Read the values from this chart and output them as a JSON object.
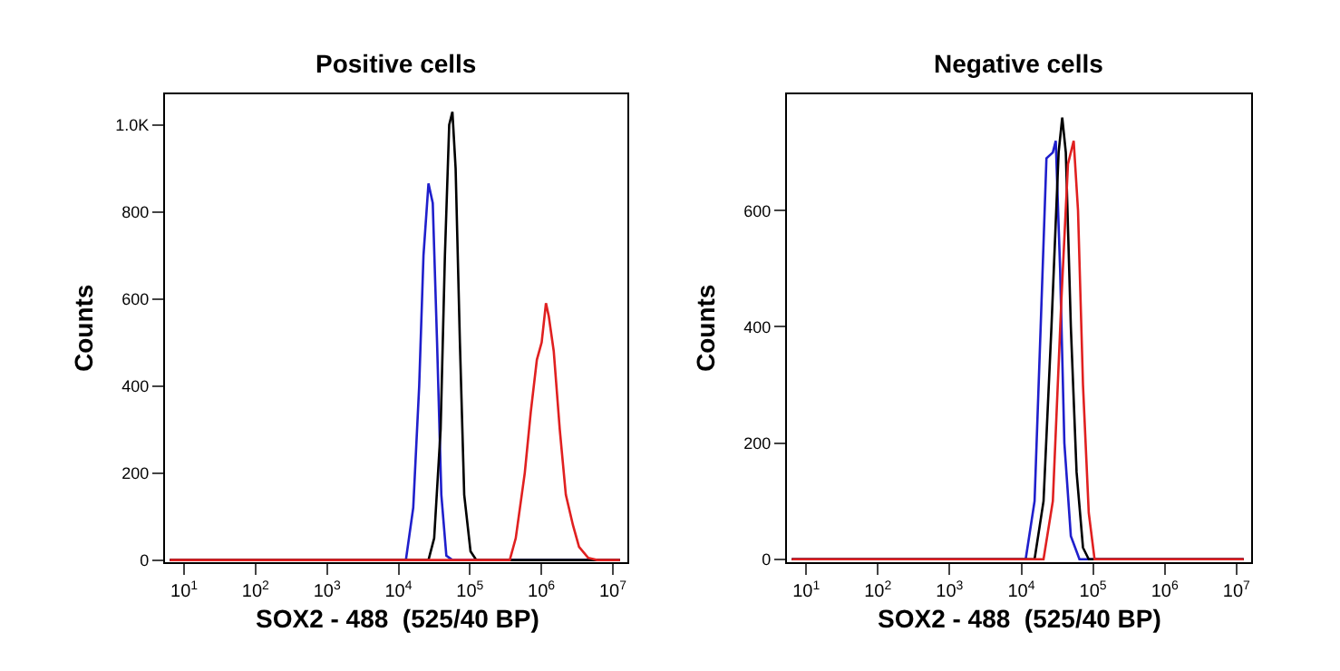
{
  "chart_data": [
    {
      "type": "line",
      "title": "Positive cells",
      "xlabel": "SOX2 - 488  (525/40 BP)",
      "ylabel": "Counts",
      "log": "x",
      "marker": "none",
      "line_style": "solid",
      "xlim": [
        5.4,
        16000000
      ],
      "ylim": [
        -5,
        1070
      ],
      "xticks": [
        {
          "value": 10,
          "label": "10$^{1}$"
        },
        {
          "value": 100,
          "label": "10$^{2}$"
        },
        {
          "value": 1000,
          "label": "10$^{3}$"
        },
        {
          "value": 10000,
          "label": "10$^{4}$"
        },
        {
          "value": 100000,
          "label": "10$^{5}$"
        },
        {
          "value": 1000000,
          "label": "10$^{6}$"
        },
        {
          "value": 10000000,
          "label": "10$^{7}$"
        }
      ],
      "yticks": [
        0,
        200,
        400,
        600,
        800,
        {
          "value": 1000,
          "label": "1.0K"
        }
      ],
      "series": [
        {
          "color": "#1f1fcc",
          "x": [
            6.3,
            12700,
            16100,
            19500,
            22400,
            26300,
            30200,
            34700,
            39800,
            46800,
            56900,
            12600000
          ],
          "values": [
            0,
            0,
            120,
            400,
            700,
            865,
            820,
            500,
            150,
            10,
            0,
            0
          ]
        },
        {
          "color": "#000000",
          "x": [
            6.3,
            26300,
            31600,
            38900,
            44700,
            51300,
            56900,
            63100,
            72400,
            83200,
            102000,
            123000,
            12600000
          ],
          "values": [
            0,
            0,
            50,
            300,
            700,
            1000,
            1030,
            900,
            500,
            150,
            20,
            0,
            0
          ]
        },
        {
          "color": "#e02020",
          "x": [
            6.3,
            361000,
            438000,
            586000,
            711000,
            865000,
            1010000,
            1160000,
            1270000,
            1490000,
            1810000,
            2200000,
            2770000,
            3370000,
            4510000,
            6030000,
            12600000
          ],
          "values": [
            0,
            0,
            50,
            200,
            340,
            460,
            500,
            590,
            560,
            480,
            300,
            150,
            80,
            30,
            5,
            0,
            0
          ]
        }
      ]
    },
    {
      "type": "line",
      "title": "Negative cells",
      "xlabel": "SOX2 - 488  (525/40 BP)",
      "ylabel": "Counts",
      "log": "x",
      "marker": "none",
      "line_style": "solid",
      "xlim": [
        5.4,
        16000000
      ],
      "ylim": [
        -5,
        800
      ],
      "xticks": [
        {
          "value": 10,
          "label": "10$^{1}$"
        },
        {
          "value": 100,
          "label": "10$^{2}$"
        },
        {
          "value": 1000,
          "label": "10$^{3}$"
        },
        {
          "value": 10000,
          "label": "10$^{4}$"
        },
        {
          "value": 100000,
          "label": "10$^{5}$"
        },
        {
          "value": 1000000,
          "label": "10$^{6}$"
        },
        {
          "value": 10000000,
          "label": "10$^{7}$"
        }
      ],
      "yticks": [
        0,
        200,
        400,
        600
      ],
      "series": [
        {
          "color": "#1f1fcc",
          "x": [
            6.3,
            11500,
            15300,
            18600,
            22400,
            27500,
            30200,
            34700,
            39800,
            49000,
            64600,
            12600000
          ],
          "values": [
            0,
            0,
            100,
            400,
            690,
            700,
            720,
            500,
            200,
            40,
            0,
            0
          ]
        },
        {
          "color": "#000000",
          "x": [
            6.3,
            15300,
            20400,
            26300,
            33100,
            37200,
            41700,
            49000,
            58900,
            72400,
            87100,
            12600000
          ],
          "values": [
            0,
            0,
            100,
            400,
            700,
            760,
            700,
            400,
            150,
            20,
            0,
            0
          ]
        },
        {
          "color": "#e02020",
          "x": [
            6.3,
            20400,
            27500,
            36300,
            44700,
            53700,
            61700,
            72400,
            87100,
            105000,
            12600000
          ],
          "values": [
            0,
            0,
            100,
            450,
            680,
            720,
            600,
            300,
            80,
            0,
            0
          ]
        }
      ]
    }
  ]
}
